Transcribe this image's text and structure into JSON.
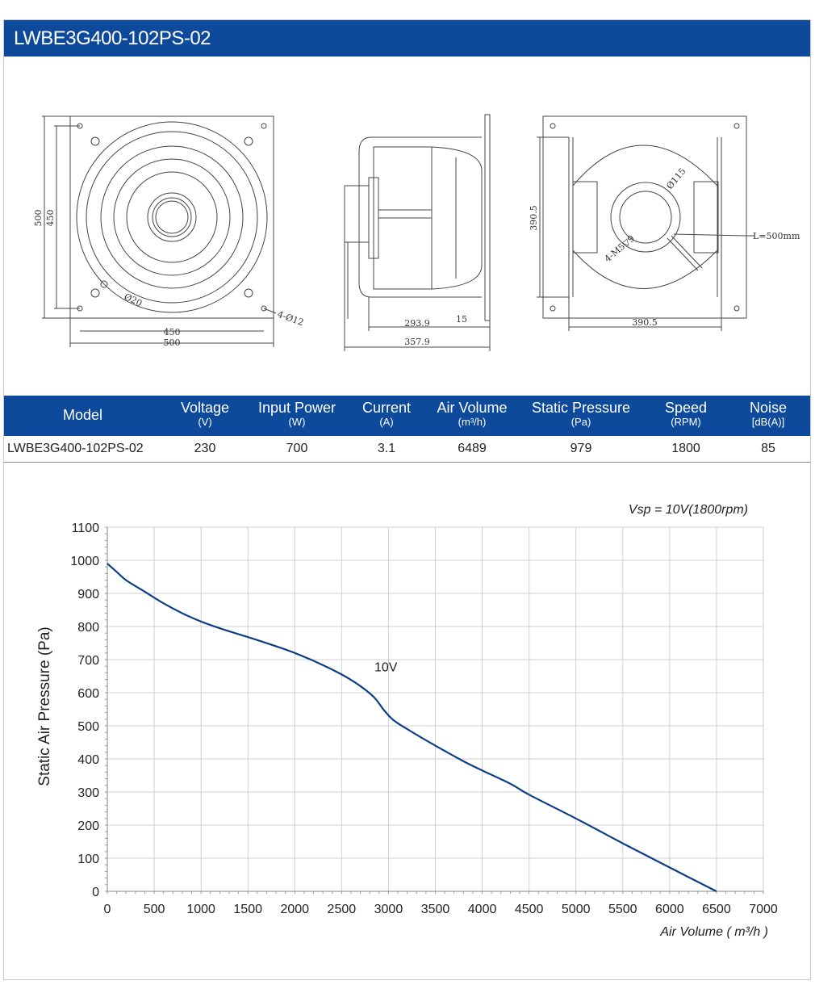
{
  "header": {
    "title": "LWBE3G400-102PS-02"
  },
  "drawing": {
    "front": {
      "d_500_h": "500",
      "d_450_h": "450",
      "d_450_w": "450",
      "d_500_w": "500",
      "phi20": "Ø20",
      "holes": "4-Ø12"
    },
    "side": {
      "d_293": "293.9",
      "d_15": "15",
      "d_357": "357.9"
    },
    "back": {
      "d_390_v": "390.5",
      "d_390_h": "390.5",
      "phi115": "Ø115",
      "m5": "4-M5▽9",
      "cable": "L=500mm"
    }
  },
  "spec_table": {
    "headers": [
      {
        "main": "Model",
        "unit": ""
      },
      {
        "main": "Voltage",
        "unit": "(V)"
      },
      {
        "main": "Input Power",
        "unit": "(W)"
      },
      {
        "main": "Current",
        "unit": "(A)"
      },
      {
        "main": "Air Volume",
        "unit": "(m³/h)"
      },
      {
        "main": "Static Pressure",
        "unit": "(Pa)"
      },
      {
        "main": "Speed",
        "unit": "(RPM)"
      },
      {
        "main": "Noise",
        "unit": "[dB(A)]"
      }
    ],
    "row": [
      "LWBE3G400-102PS-02",
      "230",
      "700",
      "3.1",
      "6489",
      "979",
      "1800",
      "85"
    ]
  },
  "chart_data": {
    "type": "line",
    "title": "",
    "annotation": "Vsp = 10V(1800rpm)",
    "xlabel": "Air Volume ( m³/h )",
    "ylabel": "Static Air Pressure  (Pa)",
    "xlim": [
      0,
      7000
    ],
    "ylim": [
      0,
      1100
    ],
    "xticks": [
      0,
      500,
      1000,
      1500,
      2000,
      2500,
      3000,
      3500,
      4000,
      4500,
      5000,
      5500,
      6000,
      6500,
      7000
    ],
    "yticks": [
      0,
      100,
      200,
      300,
      400,
      500,
      600,
      700,
      800,
      900,
      1000,
      1100
    ],
    "grid": true,
    "line_color": "#0d3f86",
    "series": [
      {
        "name": "10V",
        "x": [
          0,
          100,
          200,
          400,
          600,
          800,
          1000,
          1250,
          1500,
          1750,
          2000,
          2250,
          2500,
          2700,
          2850,
          2950,
          3050,
          3200,
          3500,
          3800,
          4000,
          4300,
          4500,
          5000,
          5500,
          6000,
          6500
        ],
        "y": [
          990,
          965,
          940,
          905,
          870,
          840,
          815,
          790,
          768,
          745,
          720,
          690,
          655,
          620,
          585,
          548,
          518,
          490,
          440,
          393,
          365,
          325,
          292,
          220,
          145,
          72,
          0
        ]
      }
    ]
  }
}
